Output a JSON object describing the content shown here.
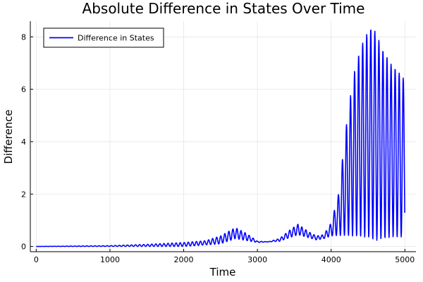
{
  "chart_data": {
    "type": "line",
    "title": "Absolute Difference in States Over Time",
    "xlabel": "Time",
    "ylabel": "Difference",
    "xlim": [
      -80,
      5150
    ],
    "ylim": [
      -0.2,
      8.6
    ],
    "xticks": [
      0,
      1000,
      2000,
      3000,
      4000,
      5000
    ],
    "yticks": [
      0,
      2,
      4,
      6,
      8
    ],
    "grid": true,
    "legend": {
      "position": "top-left",
      "entries": [
        "Difference in States"
      ]
    },
    "series": [
      {
        "name": "Difference in States",
        "color": "#0000ff",
        "oscillation_period": 55,
        "x_range": [
          0,
          5000
        ],
        "upper_envelope": {
          "x": [
            0,
            1000,
            1500,
            2000,
            2300,
            2500,
            2700,
            2850,
            3000,
            3150,
            3300,
            3450,
            3550,
            3700,
            3800,
            3900,
            4000,
            4100,
            4200,
            4300,
            4400,
            4500,
            4550,
            4600,
            4700,
            4800,
            4900,
            5000
          ],
          "y": [
            0,
            0.03,
            0.08,
            0.15,
            0.22,
            0.4,
            0.72,
            0.5,
            0.2,
            0.18,
            0.3,
            0.65,
            0.85,
            0.55,
            0.4,
            0.45,
            0.9,
            2.0,
            4.5,
            6.5,
            7.6,
            8.2,
            8.35,
            8.2,
            7.5,
            7.0,
            6.7,
            6.35
          ]
        },
        "lower_envelope": {
          "x": [
            0,
            2000,
            2500,
            2700,
            2900,
            3000,
            3300,
            3550,
            3800,
            3900,
            4000,
            4100,
            4300,
            4500,
            4600,
            4700,
            4800,
            4900,
            5000
          ],
          "y": [
            0,
            0,
            0.1,
            0.3,
            0.2,
            0.15,
            0.2,
            0.45,
            0.25,
            0.3,
            0.4,
            0.42,
            0.4,
            0.35,
            0.22,
            0.3,
            0.35,
            0.35,
            0.38
          ]
        }
      }
    ]
  }
}
